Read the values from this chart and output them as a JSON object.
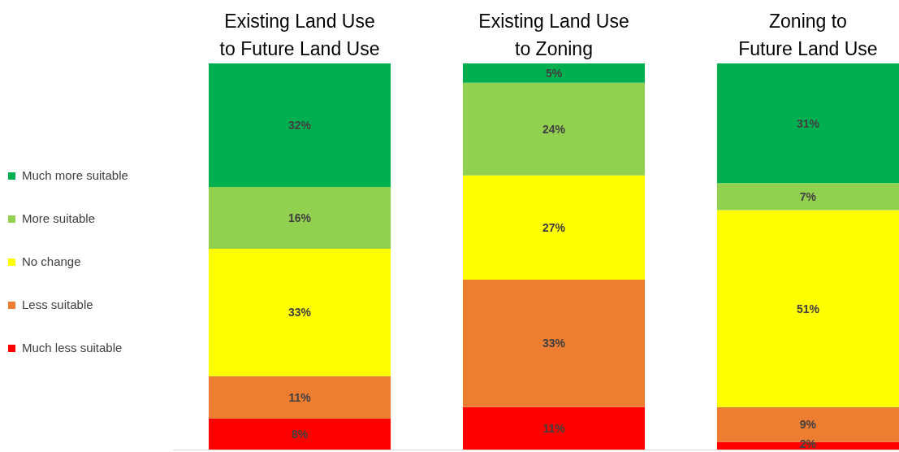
{
  "chart_data": {
    "type": "bar",
    "stacked": true,
    "legend": "left",
    "categories": [
      "Existing Land Use\nto Future Land Use",
      "Existing Land Use\nto Zoning",
      "Zoning to\nFuture Land Use"
    ],
    "series": [
      {
        "name": "Much less suitable",
        "color": "#ff0000",
        "values": [
          8,
          11,
          2
        ],
        "value_labels": [
          "8%",
          "11%",
          "2%"
        ]
      },
      {
        "name": "Less suitable",
        "color": "#ed7d31",
        "values": [
          11,
          33,
          9
        ],
        "value_labels": [
          "11%",
          "33%",
          "9%"
        ]
      },
      {
        "name": "No change",
        "color": "#ffff00",
        "values": [
          33,
          27,
          51
        ],
        "value_labels": [
          "33%",
          "27%",
          "51%"
        ]
      },
      {
        "name": "More suitable",
        "color": "#92d050",
        "values": [
          16,
          24,
          7
        ],
        "value_labels": [
          "16%",
          "24%",
          "7%"
        ]
      },
      {
        "name": "Much more suitable",
        "color": "#00b050",
        "values": [
          32,
          5,
          31
        ],
        "value_labels": [
          "32%",
          "5%",
          "31%"
        ]
      }
    ]
  }
}
